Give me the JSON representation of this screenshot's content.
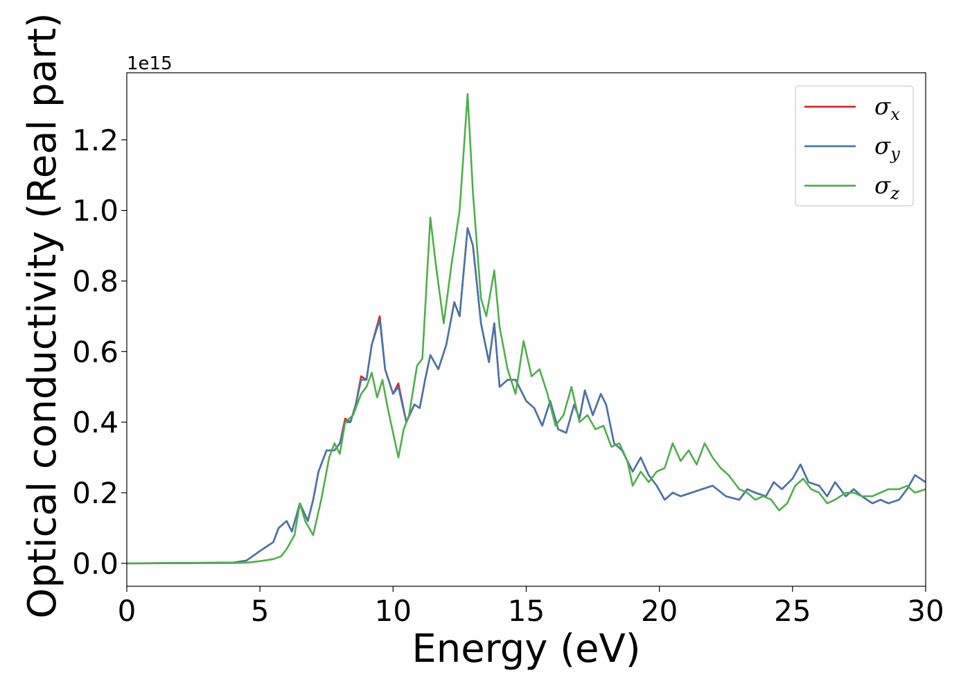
{
  "chart_data": {
    "type": "line",
    "title": "",
    "xlabel": "Energy (eV)",
    "ylabel": "Optical conductivity (Real part)",
    "offset_text": "1e15",
    "xlim": [
      0,
      30
    ],
    "ylim": [
      -0.065,
      1.39
    ],
    "y_scale_note": "",
    "xticks": [
      0,
      5,
      10,
      15,
      20,
      25,
      30
    ],
    "xtick_labels": [
      "0",
      "5",
      "10",
      "15",
      "20",
      "25",
      "30"
    ],
    "yticks": [
      0.0,
      0.2,
      0.4,
      0.6,
      0.8,
      1.0,
      1.2
    ],
    "ytick_labels": [
      "0.0",
      "0.2",
      "0.4",
      "0.6",
      "0.8",
      "1.0",
      "1.2"
    ],
    "grid": false,
    "legend_position": "top-right",
    "series": [
      {
        "name": "σ_x",
        "symbol": "σ",
        "subscript": "x",
        "color": "#d62728",
        "x": [
          0,
          4,
          4.5,
          5,
          5.5,
          5.7,
          6.0,
          6.2,
          6.5,
          6.8,
          7.0,
          7.2,
          7.5,
          7.8,
          8.0,
          8.2,
          8.4,
          8.6,
          8.8,
          9.0,
          9.2,
          9.5,
          9.7,
          10.0,
          10.2,
          10.5,
          10.8,
          11.0,
          11.2,
          11.4,
          11.7,
          12.0,
          12.3,
          12.5,
          12.8,
          13.0,
          13.3,
          13.6,
          13.8,
          14.0,
          14.3,
          14.6,
          15.0,
          15.3,
          15.6,
          15.9,
          16.2,
          16.5,
          16.8,
          17.0,
          17.2,
          17.5,
          17.8,
          18.0,
          18.3,
          18.6,
          19.0,
          19.3,
          19.6,
          19.9,
          20.2,
          20.5,
          20.8,
          21.2,
          21.6,
          22.0,
          22.5,
          23.0,
          23.3,
          23.6,
          24.0,
          24.3,
          24.6,
          25.0,
          25.3,
          25.6,
          26.0,
          26.3,
          26.6,
          27.0,
          27.3,
          27.6,
          28.0,
          28.3,
          28.6,
          29.0,
          29.3,
          29.6,
          30.0
        ],
        "y": [
          0,
          0.002,
          0.008,
          0.035,
          0.06,
          0.1,
          0.12,
          0.09,
          0.17,
          0.12,
          0.18,
          0.26,
          0.32,
          0.32,
          0.34,
          0.41,
          0.4,
          0.45,
          0.53,
          0.52,
          0.62,
          0.7,
          0.55,
          0.48,
          0.51,
          0.4,
          0.45,
          0.44,
          0.52,
          0.59,
          0.55,
          0.62,
          0.74,
          0.7,
          0.95,
          0.9,
          0.68,
          0.57,
          0.68,
          0.5,
          0.52,
          0.52,
          0.46,
          0.44,
          0.39,
          0.46,
          0.38,
          0.37,
          0.45,
          0.41,
          0.49,
          0.42,
          0.48,
          0.45,
          0.34,
          0.32,
          0.26,
          0.3,
          0.25,
          0.22,
          0.18,
          0.2,
          0.19,
          0.2,
          0.21,
          0.22,
          0.19,
          0.18,
          0.21,
          0.2,
          0.19,
          0.23,
          0.21,
          0.24,
          0.28,
          0.23,
          0.22,
          0.19,
          0.23,
          0.19,
          0.21,
          0.19,
          0.17,
          0.18,
          0.17,
          0.18,
          0.21,
          0.25,
          0.23
        ]
      },
      {
        "name": "σ_y",
        "symbol": "σ",
        "subscript": "y",
        "color": "#4477aa",
        "x": [
          0,
          4,
          4.5,
          5,
          5.5,
          5.7,
          6.0,
          6.2,
          6.5,
          6.8,
          7.0,
          7.2,
          7.5,
          7.8,
          8.0,
          8.2,
          8.4,
          8.6,
          8.8,
          9.0,
          9.2,
          9.5,
          9.7,
          10.0,
          10.2,
          10.5,
          10.8,
          11.0,
          11.2,
          11.4,
          11.7,
          12.0,
          12.3,
          12.5,
          12.8,
          13.0,
          13.3,
          13.6,
          13.8,
          14.0,
          14.3,
          14.6,
          15.0,
          15.3,
          15.6,
          15.9,
          16.2,
          16.5,
          16.8,
          17.0,
          17.2,
          17.5,
          17.8,
          18.0,
          18.3,
          18.6,
          19.0,
          19.3,
          19.6,
          19.9,
          20.2,
          20.5,
          20.8,
          21.2,
          21.6,
          22.0,
          22.5,
          23.0,
          23.3,
          23.6,
          24.0,
          24.3,
          24.6,
          25.0,
          25.3,
          25.6,
          26.0,
          26.3,
          26.6,
          27.0,
          27.3,
          27.6,
          28.0,
          28.3,
          28.6,
          29.0,
          29.3,
          29.6,
          30.0
        ],
        "y": [
          0,
          0.002,
          0.008,
          0.035,
          0.06,
          0.1,
          0.12,
          0.09,
          0.17,
          0.12,
          0.18,
          0.26,
          0.32,
          0.32,
          0.34,
          0.4,
          0.4,
          0.45,
          0.52,
          0.52,
          0.62,
          0.69,
          0.55,
          0.48,
          0.5,
          0.4,
          0.45,
          0.44,
          0.52,
          0.59,
          0.55,
          0.62,
          0.74,
          0.7,
          0.95,
          0.9,
          0.68,
          0.57,
          0.68,
          0.5,
          0.52,
          0.52,
          0.46,
          0.44,
          0.39,
          0.46,
          0.38,
          0.37,
          0.45,
          0.41,
          0.49,
          0.42,
          0.48,
          0.45,
          0.34,
          0.32,
          0.26,
          0.3,
          0.25,
          0.22,
          0.18,
          0.2,
          0.19,
          0.2,
          0.21,
          0.22,
          0.19,
          0.18,
          0.21,
          0.2,
          0.19,
          0.23,
          0.21,
          0.24,
          0.28,
          0.23,
          0.22,
          0.19,
          0.23,
          0.19,
          0.21,
          0.19,
          0.17,
          0.18,
          0.17,
          0.18,
          0.21,
          0.25,
          0.23
        ]
      },
      {
        "name": "σ_z",
        "symbol": "σ",
        "subscript": "z",
        "color": "#4daf4a",
        "x": [
          0,
          4,
          4.5,
          5,
          5.5,
          5.8,
          6.0,
          6.3,
          6.5,
          6.7,
          7.0,
          7.3,
          7.6,
          7.8,
          8.0,
          8.2,
          8.5,
          8.8,
          9.0,
          9.2,
          9.4,
          9.6,
          9.8,
          10.0,
          10.2,
          10.4,
          10.6,
          10.9,
          11.1,
          11.4,
          11.6,
          11.9,
          12.2,
          12.5,
          12.8,
          13.0,
          13.3,
          13.5,
          13.8,
          14.0,
          14.3,
          14.6,
          14.9,
          15.2,
          15.5,
          15.8,
          16.1,
          16.4,
          16.7,
          17.0,
          17.3,
          17.6,
          17.9,
          18.2,
          18.5,
          18.8,
          19.0,
          19.3,
          19.6,
          19.9,
          20.2,
          20.5,
          20.8,
          21.1,
          21.4,
          21.7,
          22.0,
          22.3,
          22.6,
          23.0,
          23.3,
          23.6,
          23.9,
          24.2,
          24.5,
          24.8,
          25.1,
          25.4,
          25.7,
          26.0,
          26.3,
          26.6,
          27.0,
          27.3,
          27.6,
          28.0,
          28.3,
          28.6,
          29.0,
          29.3,
          29.6,
          30.0
        ],
        "y": [
          0,
          0.001,
          0.002,
          0.006,
          0.012,
          0.02,
          0.04,
          0.08,
          0.17,
          0.12,
          0.08,
          0.18,
          0.3,
          0.34,
          0.31,
          0.4,
          0.42,
          0.48,
          0.5,
          0.54,
          0.47,
          0.52,
          0.44,
          0.37,
          0.3,
          0.38,
          0.42,
          0.56,
          0.58,
          0.98,
          0.85,
          0.68,
          0.85,
          1.0,
          1.33,
          1.05,
          0.75,
          0.7,
          0.83,
          0.67,
          0.55,
          0.48,
          0.63,
          0.53,
          0.55,
          0.48,
          0.39,
          0.42,
          0.5,
          0.4,
          0.42,
          0.38,
          0.39,
          0.33,
          0.34,
          0.29,
          0.22,
          0.26,
          0.23,
          0.26,
          0.27,
          0.34,
          0.29,
          0.32,
          0.28,
          0.34,
          0.3,
          0.27,
          0.25,
          0.21,
          0.2,
          0.18,
          0.19,
          0.18,
          0.15,
          0.17,
          0.22,
          0.24,
          0.21,
          0.2,
          0.17,
          0.18,
          0.2,
          0.2,
          0.19,
          0.19,
          0.2,
          0.21,
          0.21,
          0.22,
          0.2,
          0.21
        ]
      }
    ]
  }
}
